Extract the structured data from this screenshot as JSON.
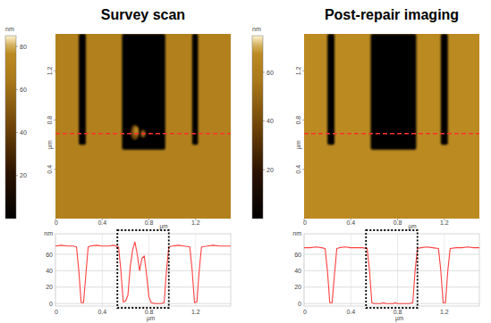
{
  "chart_data": [
    {
      "type": "heatmap",
      "title": "Survey scan",
      "xlabel": "µm",
      "ylabel": "µm",
      "xlim": [
        0,
        1.5
      ],
      "ylim": [
        0,
        1.5
      ],
      "xticks": [
        0,
        0.4,
        0.8,
        1.2
      ],
      "yticks": [
        0.4,
        0.8,
        1.2
      ],
      "colorbar": {
        "label": "nm",
        "range": [
          0,
          85
        ],
        "ticks": [
          20,
          40,
          60,
          80
        ]
      },
      "surface_height": 70,
      "features": [
        {
          "x": [
            0.2,
            0.26
          ],
          "y": [
            0.6,
            1.5
          ],
          "height": 0
        },
        {
          "x": [
            0.57,
            0.94
          ],
          "y": [
            0.56,
            1.5
          ],
          "height": 0
        },
        {
          "x": [
            1.17,
            1.22
          ],
          "y": [
            0.6,
            1.5
          ],
          "height": 0
        }
      ],
      "debris": [
        {
          "x": 0.68,
          "y": 0.7,
          "rx": 0.035,
          "ry": 0.06,
          "height": 45
        },
        {
          "x": 0.75,
          "y": 0.69,
          "rx": 0.02,
          "ry": 0.03,
          "height": 55
        },
        {
          "x": 0.69,
          "y": 0.71,
          "rx": 0.02,
          "ry": 0.035,
          "height": 75
        }
      ],
      "profile_y": 0.69,
      "color": "#ff3030"
    },
    {
      "type": "heatmap",
      "title": "Post-repair imaging",
      "xlabel": "µm",
      "ylabel": "µm",
      "xlim": [
        0,
        1.5
      ],
      "ylim": [
        0,
        1.5
      ],
      "xticks": [
        0,
        0.4,
        0.8,
        1.2
      ],
      "yticks": [
        0.4,
        0.8,
        1.2
      ],
      "colorbar": {
        "label": "nm",
        "range": [
          0,
          75
        ],
        "ticks": [
          20,
          40,
          60
        ]
      },
      "surface_height": 68,
      "features": [
        {
          "x": [
            0.2,
            0.26
          ],
          "y": [
            0.6,
            1.5
          ],
          "height": 0
        },
        {
          "x": [
            0.57,
            0.96
          ],
          "y": [
            0.56,
            1.5
          ],
          "height": 0
        },
        {
          "x": [
            1.17,
            1.23
          ],
          "y": [
            0.6,
            1.5
          ],
          "height": 0
        }
      ],
      "debris": [],
      "profile_y": 0.69,
      "color": "#ff3030"
    },
    {
      "type": "line",
      "xlabel": "µm",
      "ylabel": "nm",
      "xlim": [
        0,
        1.5
      ],
      "ylim": [
        -3,
        85
      ],
      "xticks": [
        0,
        0.4,
        0.8,
        1.2
      ],
      "yticks": [
        0,
        20,
        40,
        60
      ],
      "grid": true,
      "color": "#ff4040",
      "highlight_x": [
        0.53,
        0.97
      ],
      "x": [
        0,
        0.05,
        0.1,
        0.15,
        0.18,
        0.2,
        0.22,
        0.24,
        0.26,
        0.28,
        0.3,
        0.35,
        0.4,
        0.45,
        0.5,
        0.54,
        0.56,
        0.58,
        0.6,
        0.62,
        0.64,
        0.66,
        0.68,
        0.7,
        0.72,
        0.74,
        0.76,
        0.78,
        0.8,
        0.82,
        0.85,
        0.9,
        0.93,
        0.95,
        0.97,
        1.0,
        1.05,
        1.1,
        1.15,
        1.17,
        1.19,
        1.21,
        1.23,
        1.25,
        1.3,
        1.35,
        1.4,
        1.45,
        1.5
      ],
      "values": [
        70,
        71,
        70,
        70,
        69,
        40,
        1,
        1,
        35,
        69,
        70,
        71,
        70,
        70,
        71,
        69,
        40,
        2,
        3,
        10,
        45,
        65,
        75,
        60,
        40,
        55,
        58,
        35,
        8,
        1,
        0,
        0,
        1,
        40,
        69,
        70,
        71,
        70,
        69,
        40,
        1,
        2,
        40,
        69,
        70,
        71,
        70,
        70,
        70
      ]
    },
    {
      "type": "line",
      "xlabel": "µm",
      "ylabel": "nm",
      "xlim": [
        0,
        1.5
      ],
      "ylim": [
        -3,
        85
      ],
      "xticks": [
        0,
        0.4,
        0.8,
        1.2
      ],
      "yticks": [
        0,
        20,
        40,
        60
      ],
      "grid": true,
      "color": "#ff4040",
      "highlight_x": [
        0.53,
        0.97
      ],
      "x": [
        0,
        0.05,
        0.1,
        0.15,
        0.18,
        0.2,
        0.22,
        0.24,
        0.26,
        0.28,
        0.3,
        0.35,
        0.4,
        0.45,
        0.5,
        0.54,
        0.56,
        0.58,
        0.6,
        0.62,
        0.64,
        0.66,
        0.68,
        0.7,
        0.72,
        0.74,
        0.76,
        0.78,
        0.8,
        0.82,
        0.85,
        0.9,
        0.93,
        0.95,
        0.97,
        1.0,
        1.05,
        1.1,
        1.15,
        1.17,
        1.19,
        1.21,
        1.23,
        1.25,
        1.3,
        1.35,
        1.4,
        1.45,
        1.5
      ],
      "values": [
        68,
        68,
        69,
        68,
        67,
        40,
        1,
        1,
        35,
        67,
        68,
        69,
        68,
        68,
        68,
        67,
        40,
        1,
        0,
        0,
        0,
        0,
        1,
        0,
        0,
        0,
        0,
        1,
        0,
        0,
        0,
        0,
        1,
        40,
        67,
        68,
        69,
        68,
        67,
        40,
        1,
        1,
        40,
        67,
        68,
        68,
        69,
        68,
        68
      ]
    }
  ]
}
